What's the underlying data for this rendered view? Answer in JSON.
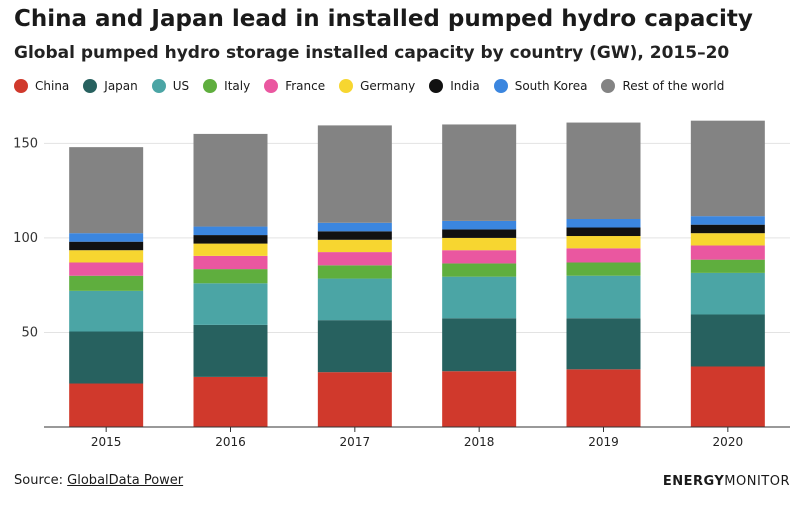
{
  "title": "China and Japan lead in installed pumped hydro capacity",
  "subtitle": "Global pumped hydro storage installed capacity by country (GW), 2015–20",
  "source": {
    "prefix": "Source: ",
    "link_text": "GlobalData Power"
  },
  "brand": {
    "bold": "ENERGY",
    "light": "MONITOR"
  },
  "chart_data": {
    "type": "bar",
    "stacked": true,
    "categories": [
      "2015",
      "2016",
      "2017",
      "2018",
      "2019",
      "2020"
    ],
    "ylim": [
      0,
      165
    ],
    "yticks": [
      50,
      100,
      150
    ],
    "ytick_labels": [
      "50",
      "100",
      "150"
    ],
    "grid": true,
    "legend_position": "top",
    "series": [
      {
        "name": "China",
        "color": "#d0392c",
        "values": [
          23,
          26.5,
          29,
          29.5,
          30.5,
          32
        ]
      },
      {
        "name": "Japan",
        "color": "#27615f",
        "values": [
          27.5,
          27.5,
          27.5,
          28,
          27,
          27.5
        ]
      },
      {
        "name": "US",
        "color": "#4ba5a5",
        "values": [
          21.5,
          22,
          22,
          22,
          22.5,
          22
        ]
      },
      {
        "name": "Italy",
        "color": "#5fae3e",
        "values": [
          8,
          7.5,
          7,
          7,
          7,
          7
        ]
      },
      {
        "name": "France",
        "color": "#ea57a0",
        "values": [
          7,
          7,
          7,
          7,
          7.5,
          7.5
        ]
      },
      {
        "name": "Germany",
        "color": "#f7d630",
        "values": [
          6.5,
          6.5,
          6.5,
          6.5,
          6.5,
          6.5
        ]
      },
      {
        "name": "India",
        "color": "#111111",
        "values": [
          4.5,
          4.5,
          4.5,
          4.5,
          4.5,
          4.5
        ]
      },
      {
        "name": "South Korea",
        "color": "#3b86df",
        "values": [
          4.5,
          4.5,
          4.5,
          4.5,
          4.5,
          4.5
        ]
      },
      {
        "name": "Rest of the world",
        "color": "#838383",
        "values": [
          45.5,
          49,
          51.5,
          51,
          51,
          50.5
        ]
      }
    ]
  }
}
